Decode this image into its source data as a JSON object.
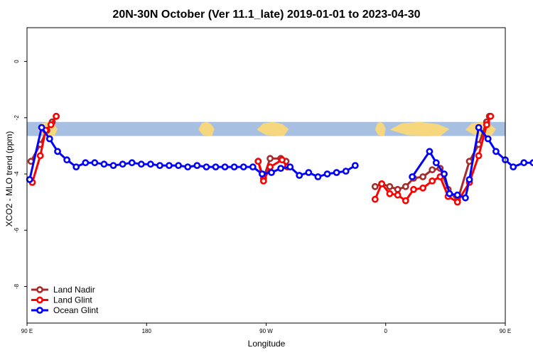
{
  "chart_data": {
    "type": "line",
    "title": "20N-30N October (Ver 11.1_late)   2019-01-01 to 2023-04-30",
    "xlabel": "Longitude",
    "ylabel": "XCO2 - MLO trend (ppm)",
    "xlim": [
      90,
      450
    ],
    "ylim": [
      -9.3,
      1.2
    ],
    "x_ticks": [
      {
        "value": 90,
        "label": "90 E"
      },
      {
        "value": 180,
        "label": "180"
      },
      {
        "value": 270,
        "label": "90 W"
      },
      {
        "value": 360,
        "label": "0"
      },
      {
        "value": 450,
        "label": "90 E"
      },
      {
        "value": 540,
        "label": "180"
      }
    ],
    "y_ticks": [
      {
        "value": 0,
        "label": "0"
      },
      {
        "value": -2,
        "label": "-2"
      },
      {
        "value": -4,
        "label": "-4"
      },
      {
        "value": -6,
        "label": "-6"
      },
      {
        "value": -8,
        "label": "-8"
      }
    ],
    "grid": false,
    "legend_position": "bottom-left",
    "map_strip": {
      "y_range": [
        -2.15,
        -2.65
      ],
      "ocean_color": "#a7bfe0",
      "land_color": "#f7d77e"
    },
    "series": [
      {
        "name": "Land Nadir",
        "color": "#a52a2a",
        "segments": [
          [
            [
              93,
              -3.55
            ],
            [
              100,
              -2.95
            ],
            [
              105,
              -2.45
            ],
            [
              109,
              -2.15
            ],
            [
              112,
              -1.95
            ]
          ],
          [
            [
              264,
              -3.55
            ],
            [
              268,
              -4.15
            ],
            [
              273,
              -3.45
            ],
            [
              281,
              -3.45
            ],
            [
              285,
              -3.55
            ]
          ],
          [
            [
              352,
              -4.45
            ],
            [
              357,
              -4.35
            ],
            [
              363,
              -4.45
            ],
            [
              369,
              -4.55
            ],
            [
              375,
              -4.45
            ],
            [
              381,
              -4.15
            ],
            [
              388,
              -4.1
            ],
            [
              395,
              -3.85
            ],
            [
              401,
              -3.8
            ],
            [
              407,
              -4.55
            ],
            [
              414,
              -4.95
            ],
            [
              423,
              -3.55
            ],
            [
              430,
              -2.95
            ],
            [
              436,
              -2.15
            ],
            [
              438,
              -1.95
            ]
          ]
        ]
      },
      {
        "name": "Land Glint",
        "color": "#ff0000",
        "segments": [
          [
            [
              94,
              -4.3
            ],
            [
              100,
              -3.35
            ],
            [
              104,
              -2.45
            ],
            [
              108,
              -2.25
            ],
            [
              112,
              -1.95
            ]
          ],
          [
            [
              264,
              -3.55
            ],
            [
              268,
              -4.25
            ],
            [
              273,
              -3.75
            ],
            [
              282,
              -3.5
            ],
            [
              286,
              -3.75
            ]
          ],
          [
            [
              352,
              -4.9
            ],
            [
              357,
              -4.35
            ],
            [
              363,
              -4.7
            ],
            [
              369,
              -4.75
            ],
            [
              375,
              -4.95
            ],
            [
              381,
              -4.55
            ],
            [
              388,
              -4.5
            ],
            [
              395,
              -4.25
            ],
            [
              401,
              -4.1
            ],
            [
              407,
              -4.8
            ],
            [
              414,
              -5.0
            ],
            [
              423,
              -4.3
            ],
            [
              430,
              -3.35
            ],
            [
              436,
              -2.25
            ],
            [
              439,
              -1.95
            ]
          ]
        ]
      },
      {
        "name": "Ocean Glint",
        "color": "#0000ff",
        "segments": [
          [
            [
              92,
              -4.2
            ],
            [
              101,
              -2.35
            ],
            [
              107,
              -2.75
            ],
            [
              113,
              -3.2
            ],
            [
              120,
              -3.5
            ],
            [
              127,
              -3.75
            ],
            [
              134,
              -3.6
            ],
            [
              141,
              -3.6
            ],
            [
              148,
              -3.65
            ],
            [
              155,
              -3.7
            ],
            [
              162,
              -3.65
            ],
            [
              169,
              -3.6
            ],
            [
              176,
              -3.65
            ],
            [
              183,
              -3.65
            ],
            [
              190,
              -3.7
            ],
            [
              197,
              -3.7
            ],
            [
              204,
              -3.7
            ],
            [
              211,
              -3.75
            ],
            [
              218,
              -3.7
            ],
            [
              225,
              -3.75
            ],
            [
              232,
              -3.75
            ],
            [
              239,
              -3.75
            ],
            [
              246,
              -3.75
            ],
            [
              253,
              -3.75
            ],
            [
              260,
              -3.75
            ],
            [
              267,
              -4.0
            ],
            [
              274,
              -3.95
            ],
            [
              281,
              -3.8
            ],
            [
              288,
              -3.75
            ],
            [
              295,
              -4.05
            ],
            [
              302,
              -3.95
            ],
            [
              309,
              -4.1
            ],
            [
              316,
              -4.0
            ],
            [
              323,
              -3.95
            ],
            [
              330,
              -3.9
            ],
            [
              337,
              -3.7
            ]
          ],
          [
            [
              380,
              -4.1
            ],
            [
              393,
              -3.2
            ],
            [
              398,
              -3.6
            ],
            [
              404,
              -4.0
            ],
            [
              408,
              -4.7
            ],
            [
              414,
              -4.75
            ],
            [
              420,
              -4.85
            ],
            [
              423,
              -4.2
            ],
            [
              430,
              -2.35
            ],
            [
              437,
              -2.75
            ],
            [
              443,
              -3.2
            ],
            [
              450,
              -3.5
            ],
            [
              456,
              -3.75
            ],
            [
              464,
              -3.6
            ],
            [
              471,
              -3.6
            ],
            [
              478,
              -3.65
            ],
            [
              485,
              -3.65
            ]
          ]
        ]
      }
    ]
  }
}
